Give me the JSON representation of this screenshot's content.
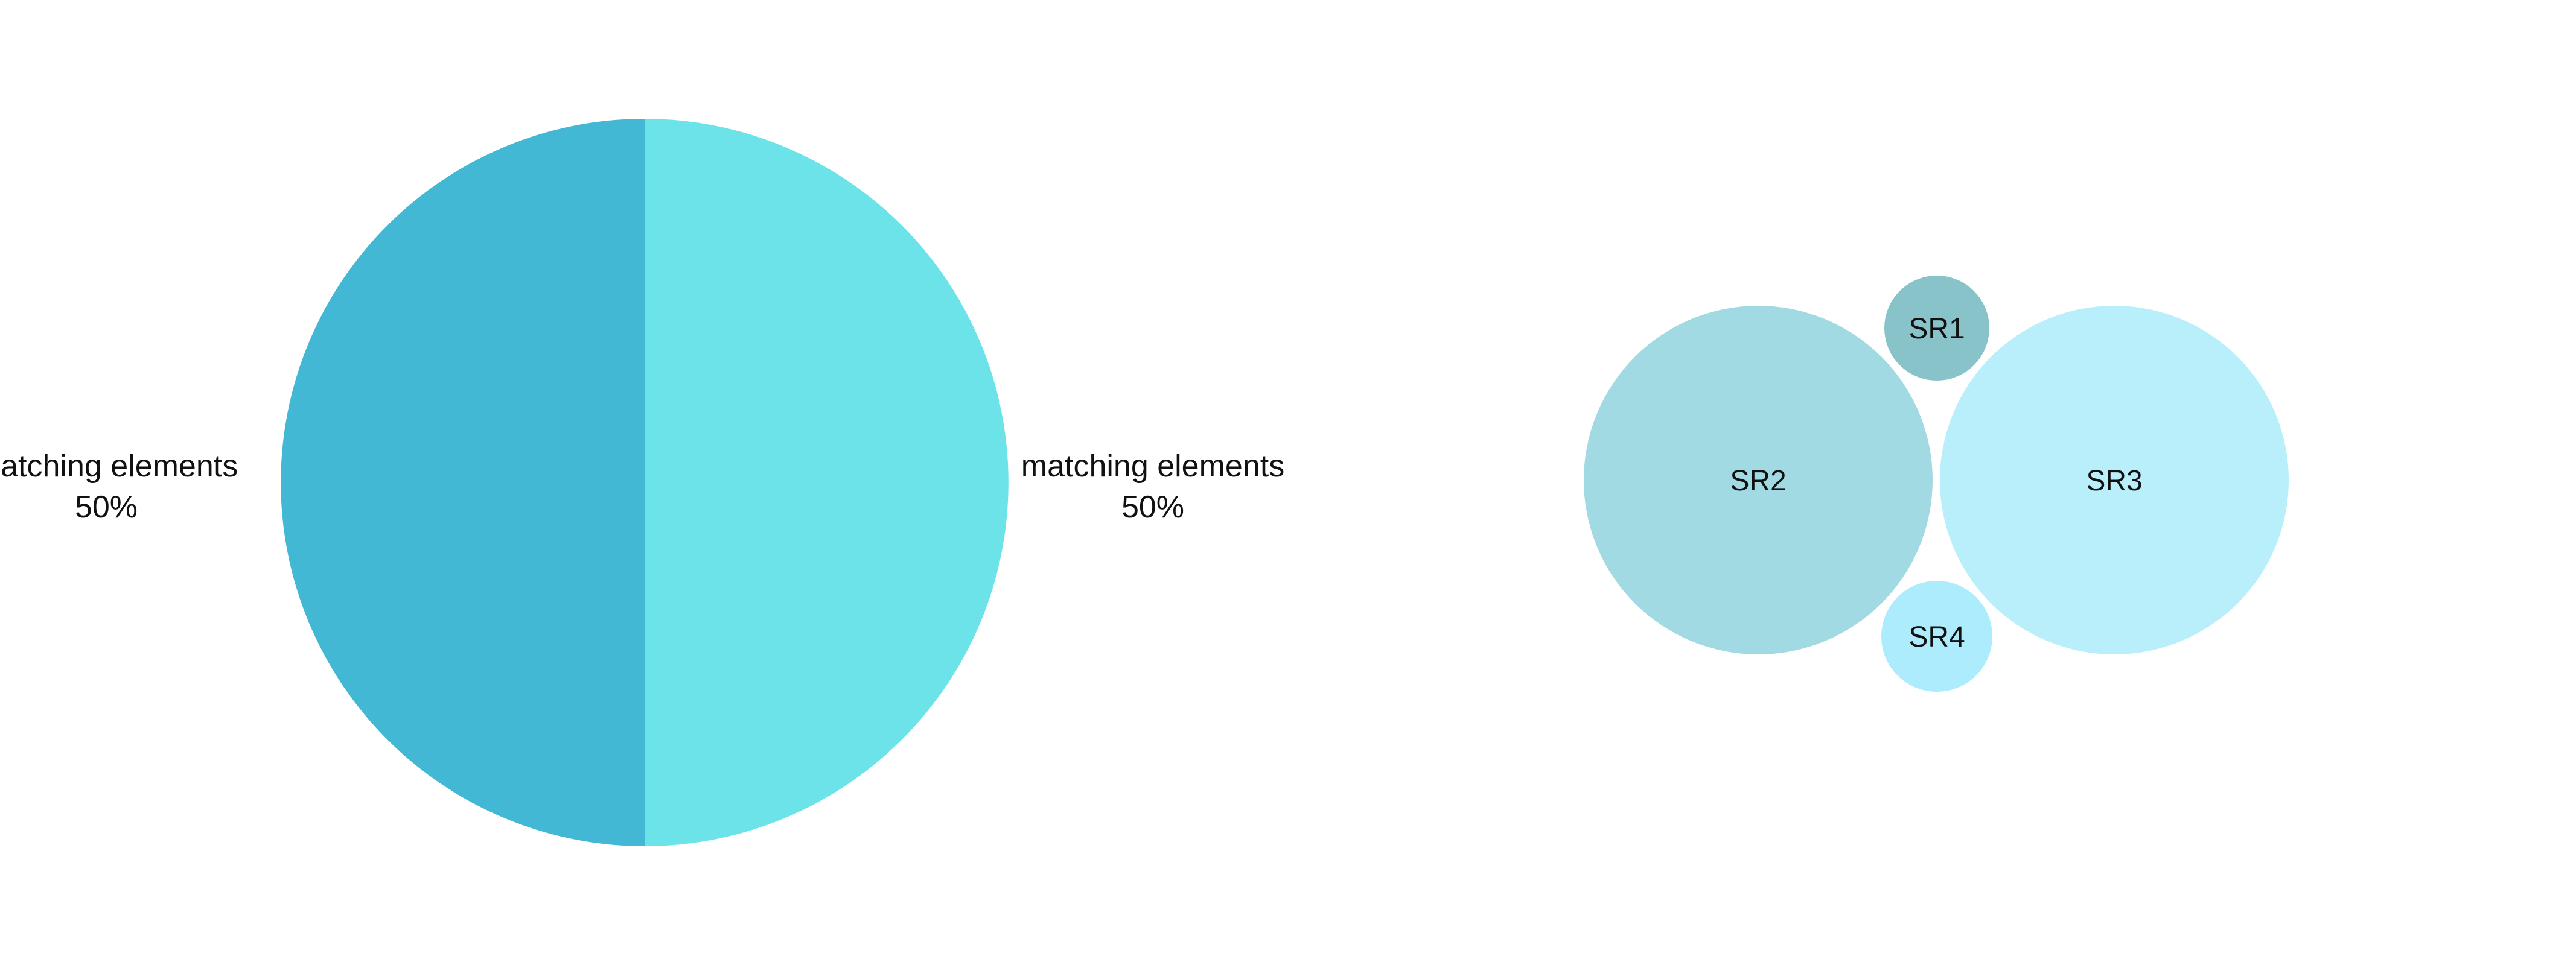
{
  "chart_data": [
    {
      "type": "pie",
      "slices": [
        {
          "label": "matching elements",
          "value": 50,
          "value_label": "50%",
          "color": "#42b8d4"
        },
        {
          "label": "matching elements",
          "value": 50,
          "value_label": "50%",
          "color": "#6ce3e8"
        }
      ]
    },
    {
      "type": "bubble",
      "bubbles": [
        {
          "label": "SR1",
          "color": "#87c3c8"
        },
        {
          "label": "SR2",
          "color": "#a1dae3"
        },
        {
          "label": "SR3",
          "color": "#b8effb"
        },
        {
          "label": "SR4",
          "color": "#acecfc"
        }
      ]
    }
  ]
}
